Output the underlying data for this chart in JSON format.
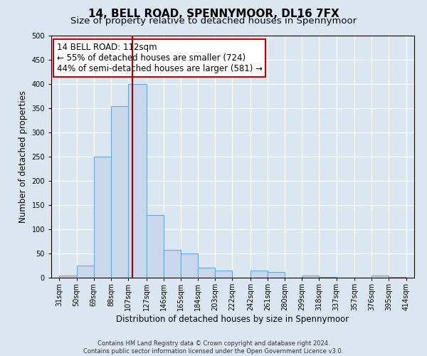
{
  "title": "14, BELL ROAD, SPENNYMOOR, DL16 7FX",
  "subtitle": "Size of property relative to detached houses in Spennymoor",
  "xlabel": "Distribution of detached houses by size in Spennymoor",
  "ylabel": "Number of detached properties",
  "bar_lefts": [
    31,
    50,
    69,
    88,
    107,
    127,
    146,
    165,
    184,
    203,
    222,
    242,
    261,
    280,
    299,
    318,
    337,
    357,
    376,
    395
  ],
  "bar_rights": [
    50,
    69,
    88,
    107,
    127,
    146,
    165,
    184,
    203,
    222,
    242,
    261,
    280,
    299,
    318,
    337,
    357,
    376,
    395,
    414
  ],
  "bar_heights": [
    5,
    25,
    250,
    355,
    400,
    130,
    58,
    50,
    20,
    15,
    0,
    15,
    12,
    0,
    5,
    2,
    0,
    0,
    5,
    2
  ],
  "bar_color": "#c8d8ea",
  "bar_edge_color": "#6aaad4",
  "vline_x": 112,
  "vline_color": "#aa0000",
  "ylim": [
    0,
    500
  ],
  "xlim_left": 22,
  "xlim_right": 423,
  "annotation_text": "14 BELL ROAD: 112sqm\n← 55% of detached houses are smaller (724)\n44% of semi-detached houses are larger (581) →",
  "annotation_box_facecolor": "#ffffff",
  "annotation_box_edgecolor": "#cc0000",
  "footer_line1": "Contains HM Land Registry data © Crown copyright and database right 2024.",
  "footer_line2": "Contains public sector information licensed under the Open Government Licence v3.0.",
  "tick_labels": [
    "31sqm",
    "50sqm",
    "69sqm",
    "88sqm",
    "107sqm",
    "127sqm",
    "146sqm",
    "165sqm",
    "184sqm",
    "203sqm",
    "222sqm",
    "242sqm",
    "261sqm",
    "280sqm",
    "299sqm",
    "318sqm",
    "337sqm",
    "357sqm",
    "376sqm",
    "395sqm",
    "414sqm"
  ],
  "tick_positions": [
    31,
    50,
    69,
    88,
    107,
    127,
    146,
    165,
    184,
    203,
    222,
    242,
    261,
    280,
    299,
    318,
    337,
    357,
    376,
    395,
    414
  ],
  "background_color": "#dce6f0",
  "plot_background_color": "#dce6f0",
  "grid_color": "#ffffff",
  "title_fontsize": 11,
  "subtitle_fontsize": 9.5,
  "axis_label_fontsize": 8.5,
  "tick_fontsize": 7,
  "annotation_fontsize": 8.5,
  "footer_fontsize": 6
}
